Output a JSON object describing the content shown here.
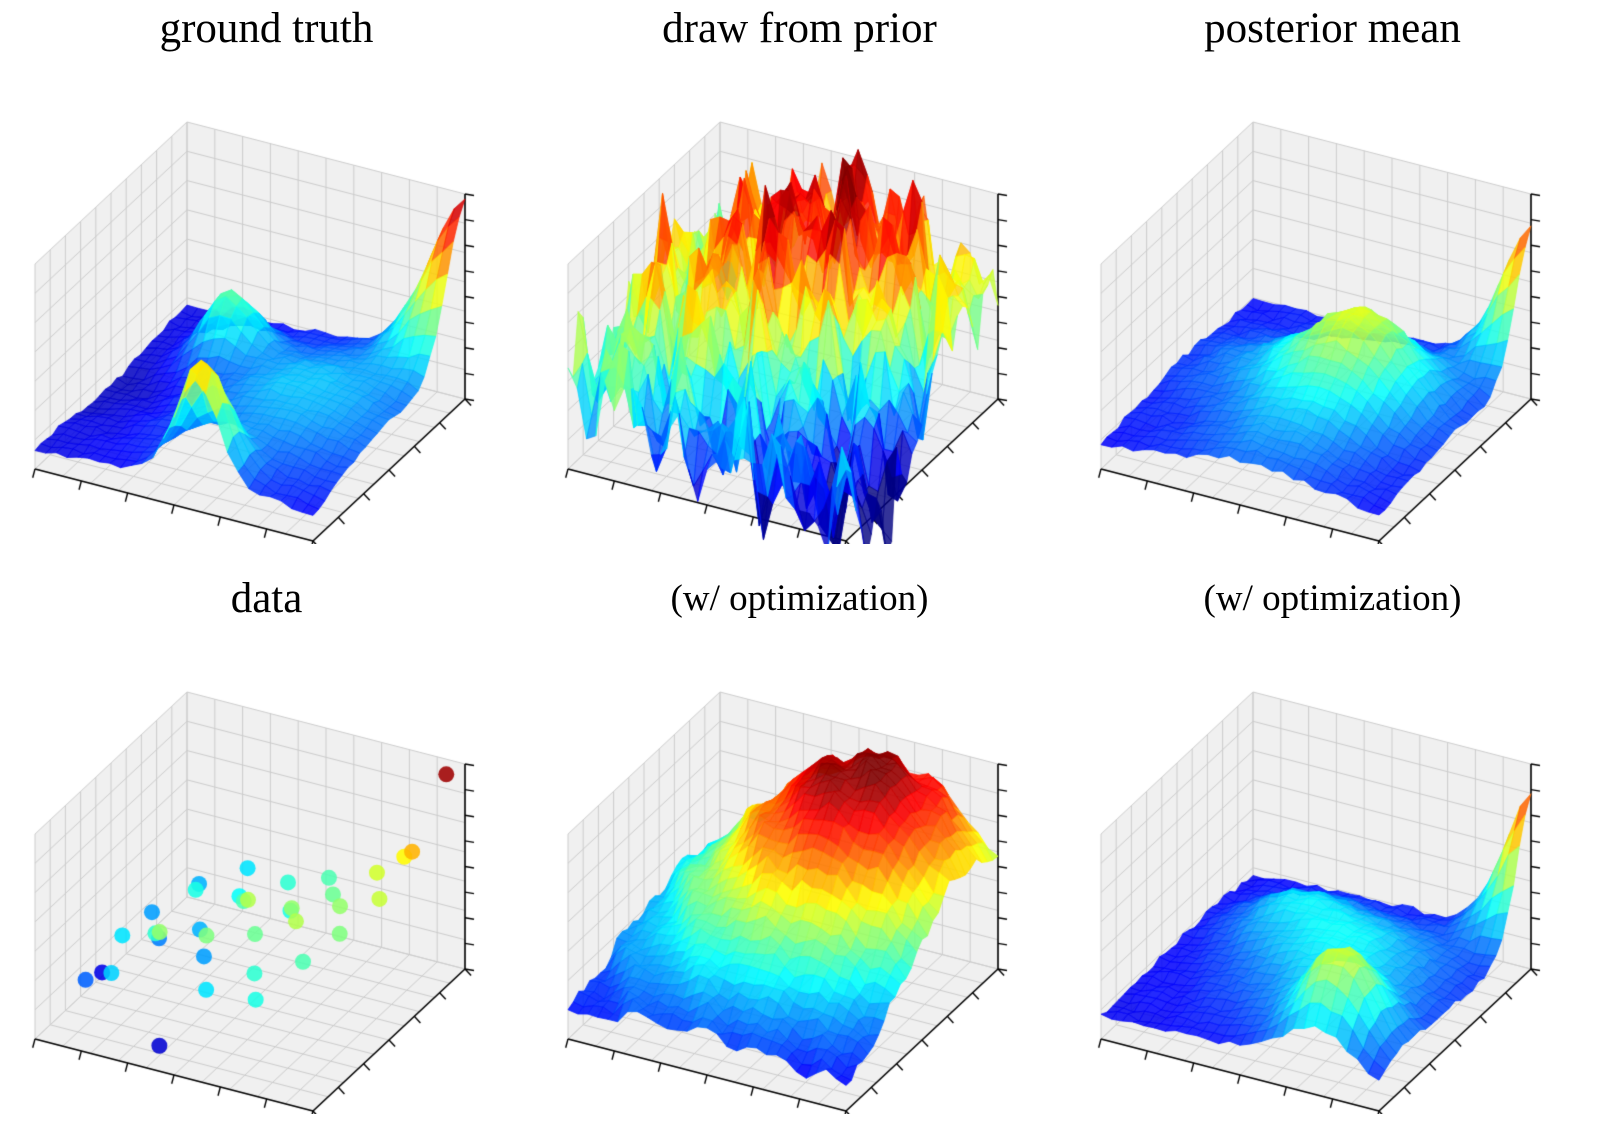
{
  "figure": {
    "background": "#ffffff"
  },
  "style": {
    "pane_color": "#f0f0f0",
    "grid_color": "#cccccc",
    "axis_color": "#000000",
    "title_color": "#000000",
    "colormap": "jet"
  },
  "axes": {
    "x_ticks": 7,
    "y_ticks": 7,
    "z_ticks": 9,
    "grid_div_xy": 10,
    "grid_div_z": 7,
    "tick_labels": "none",
    "xlabel": "",
    "ylabel": "",
    "zlabel": ""
  },
  "chart_data": [
    {
      "type": "surface",
      "title": "ground truth",
      "x_range": [
        0,
        1
      ],
      "y_range": [
        0,
        1
      ],
      "z_range": [
        0,
        1
      ],
      "grid_n": 26,
      "alpha": 0.85,
      "surface": {
        "base": 0.1,
        "seed": 3,
        "jitter": 0.012,
        "bumps": [
          {
            "cx": 1.02,
            "cy": 1.02,
            "amp": 0.85,
            "sigma": 0.14
          },
          {
            "cx": 0.3,
            "cy": 0.72,
            "amp": 0.32,
            "sigma": 0.09
          },
          {
            "cx": 0.7,
            "cy": 0.5,
            "amp": 0.22,
            "sigma": 0.3
          },
          {
            "cx": 0.58,
            "cy": 0.04,
            "amp": 0.55,
            "sigma": 0.08
          },
          {
            "cx": 0.08,
            "cy": 0.5,
            "amp": -0.06,
            "sigma": 0.2
          }
        ],
        "waves": []
      }
    },
    {
      "type": "surface",
      "title": "draw from prior",
      "x_range": [
        0,
        1
      ],
      "y_range": [
        0,
        1
      ],
      "z_range": [
        0,
        1
      ],
      "grid_n": 30,
      "alpha": 0.8,
      "surface": {
        "base": 0.4,
        "seed": 7,
        "jitter": 0.09,
        "z_min": -0.25,
        "bumps": [
          {
            "cx": 0.55,
            "cy": 0.75,
            "amp": 0.5,
            "sigma": 0.28
          },
          {
            "cx": 0.15,
            "cy": 0.45,
            "amp": 0.12,
            "sigma": 0.25
          },
          {
            "cx": 0.95,
            "cy": 0.25,
            "amp": -0.45,
            "sigma": 0.22
          },
          {
            "cx": 0.45,
            "cy": 0.05,
            "amp": -0.18,
            "sigma": 0.18
          }
        ],
        "waves": [
          {
            "a": 0.1,
            "fx": 5.1,
            "fy": 1.3,
            "ph": 1.7
          },
          {
            "a": 0.08,
            "fx": 2.3,
            "fy": 6.7,
            "ph": 4.1
          },
          {
            "a": 0.07,
            "fx": 8.2,
            "fy": 3.1,
            "ph": 0.6
          },
          {
            "a": 0.06,
            "fx": 3.7,
            "fy": 9.3,
            "ph": 2.9
          },
          {
            "a": 0.05,
            "fx": 11.4,
            "fy": 5.2,
            "ph": 5.3
          },
          {
            "a": 0.05,
            "fx": 6.6,
            "fy": 12.1,
            "ph": 3.8
          }
        ]
      }
    },
    {
      "type": "surface",
      "title": "posterior mean",
      "x_range": [
        0,
        1
      ],
      "y_range": [
        0,
        1
      ],
      "z_range": [
        0,
        1
      ],
      "grid_n": 26,
      "alpha": 0.85,
      "surface": {
        "base": 0.13,
        "seed": 3,
        "jitter": 0.015,
        "bumps": [
          {
            "cx": 1.02,
            "cy": 1.02,
            "amp": 0.72,
            "sigma": 0.12
          },
          {
            "cx": 0.63,
            "cy": 0.55,
            "amp": 0.45,
            "sigma": 0.18
          },
          {
            "cx": 0.25,
            "cy": 0.55,
            "amp": 0.1,
            "sigma": 0.18
          },
          {
            "cx": 0.55,
            "cy": 0.15,
            "amp": 0.12,
            "sigma": 0.2
          }
        ],
        "waves": []
      }
    },
    {
      "type": "scatter",
      "title": "data",
      "x_range": [
        0,
        1
      ],
      "y_range": [
        0,
        1
      ],
      "z_range": [
        0,
        1
      ],
      "point_size": 8,
      "alpha": 0.88,
      "points": [
        [
          0.05,
          0.35,
          0.1
        ],
        [
          0.1,
          0.15,
          0.22
        ],
        [
          0.12,
          0.55,
          0.28
        ],
        [
          0.15,
          0.3,
          0.35
        ],
        [
          0.18,
          0.75,
          0.3
        ],
        [
          0.2,
          0.45,
          0.25
        ],
        [
          0.22,
          0.1,
          0.33
        ],
        [
          0.25,
          0.6,
          0.4
        ],
        [
          0.28,
          0.28,
          0.42
        ],
        [
          0.3,
          0.85,
          0.35
        ],
        [
          0.32,
          0.5,
          0.3
        ],
        [
          0.35,
          0.18,
          0.52
        ],
        [
          0.38,
          0.65,
          0.38
        ],
        [
          0.4,
          0.38,
          0.28
        ],
        [
          0.42,
          0.05,
          0.08
        ],
        [
          0.45,
          0.55,
          0.45
        ],
        [
          0.48,
          0.25,
          0.5
        ],
        [
          0.5,
          0.75,
          0.42
        ],
        [
          0.52,
          0.45,
          0.55
        ],
        [
          0.55,
          0.12,
          0.35
        ],
        [
          0.58,
          0.62,
          0.4
        ],
        [
          0.6,
          0.35,
          0.48
        ],
        [
          0.62,
          0.8,
          0.45
        ],
        [
          0.65,
          0.5,
          0.52
        ],
        [
          0.68,
          0.2,
          0.42
        ],
        [
          0.7,
          0.68,
          0.48
        ],
        [
          0.72,
          0.4,
          0.55
        ],
        [
          0.75,
          0.08,
          0.4
        ],
        [
          0.78,
          0.58,
          0.52
        ],
        [
          0.8,
          0.3,
          0.45
        ],
        [
          0.82,
          0.75,
          0.58
        ],
        [
          0.85,
          0.45,
          0.5
        ],
        [
          0.88,
          0.82,
          0.63
        ],
        [
          0.9,
          0.62,
          0.57
        ],
        [
          0.93,
          0.78,
          0.7
        ],
        [
          0.96,
          0.95,
          0.97
        ]
      ]
    },
    {
      "type": "surface",
      "title": "(w/ optimization)",
      "x_range": [
        0,
        1
      ],
      "y_range": [
        0,
        1
      ],
      "z_range": [
        0,
        1
      ],
      "grid_n": 28,
      "alpha": 0.9,
      "surface": {
        "base": 0.06,
        "seed": 5,
        "jitter": 0.02,
        "bumps": [
          {
            "cx": 0.62,
            "cy": 0.8,
            "amp": 0.95,
            "sigma": 0.38
          },
          {
            "cx": 0.2,
            "cy": 0.2,
            "amp": 0.08,
            "sigma": 0.3
          }
        ],
        "waves": [
          {
            "a": 0.02,
            "fx": 4.2,
            "fy": 2.7,
            "ph": 1.1
          },
          {
            "a": 0.015,
            "fx": 7.3,
            "fy": 5.1,
            "ph": 3.3
          }
        ]
      }
    },
    {
      "type": "surface",
      "title": "(w/ optimization)",
      "x_range": [
        0,
        1
      ],
      "y_range": [
        0,
        1
      ],
      "z_range": [
        0,
        1
      ],
      "grid_n": 26,
      "alpha": 0.85,
      "surface": {
        "base": 0.11,
        "seed": 4,
        "jitter": 0.015,
        "bumps": [
          {
            "cx": 1.03,
            "cy": 1.03,
            "amp": 0.8,
            "sigma": 0.12
          },
          {
            "cx": 0.6,
            "cy": 0.5,
            "amp": 0.26,
            "sigma": 0.24
          },
          {
            "cx": 0.3,
            "cy": 0.7,
            "amp": 0.14,
            "sigma": 0.14
          },
          {
            "cx": 0.78,
            "cy": 0.15,
            "amp": 0.42,
            "sigma": 0.12
          }
        ],
        "waves": []
      }
    }
  ]
}
